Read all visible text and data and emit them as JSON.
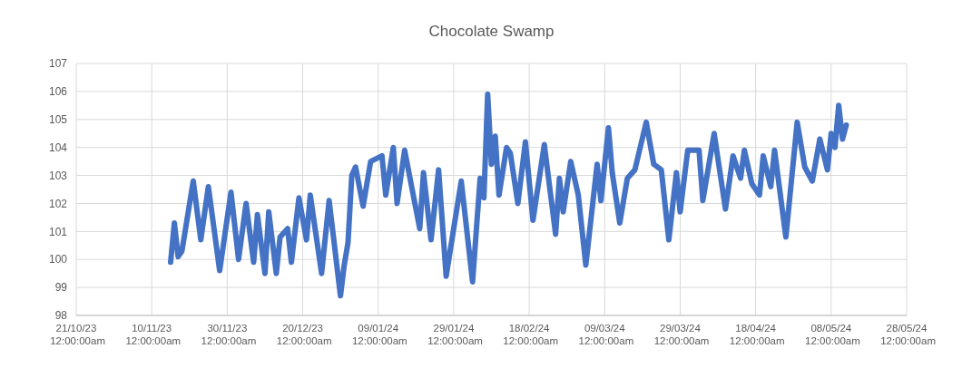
{
  "chart_data": {
    "type": "line",
    "title": "Chocolate Swamp",
    "x": [
      "2023-11-15",
      "2023-11-16",
      "2023-11-17",
      "2023-11-18",
      "2023-11-21",
      "2023-11-23",
      "2023-11-25",
      "2023-11-28",
      "2023-12-01",
      "2023-12-03",
      "2023-12-05",
      "2023-12-07",
      "2023-12-08",
      "2023-12-10",
      "2023-12-11",
      "2023-12-13",
      "2023-12-14",
      "2023-12-16",
      "2023-12-17",
      "2023-12-19",
      "2023-12-21",
      "2023-12-22",
      "2023-12-25",
      "2023-12-27",
      "2023-12-30",
      "2023-12-31",
      "2024-01-01",
      "2024-01-02",
      "2024-01-03",
      "2024-01-05",
      "2024-01-07",
      "2024-01-10",
      "2024-01-11",
      "2024-01-13",
      "2024-01-14",
      "2024-01-16",
      "2024-01-20",
      "2024-01-21",
      "2024-01-23",
      "2024-01-25",
      "2024-01-27",
      "2024-01-31",
      "2024-02-03",
      "2024-02-05",
      "2024-02-06",
      "2024-02-07",
      "2024-02-08",
      "2024-02-09",
      "2024-02-10",
      "2024-02-12",
      "2024-02-13",
      "2024-02-15",
      "2024-02-17",
      "2024-02-19",
      "2024-02-22",
      "2024-02-25",
      "2024-02-26",
      "2024-02-27",
      "2024-02-29",
      "2024-03-02",
      "2024-03-04",
      "2024-03-07",
      "2024-03-08",
      "2024-03-10",
      "2024-03-11",
      "2024-03-13",
      "2024-03-15",
      "2024-03-17",
      "2024-03-20",
      "2024-03-22",
      "2024-03-24",
      "2024-03-26",
      "2024-03-28",
      "2024-03-29",
      "2024-03-31",
      "2024-04-03",
      "2024-04-04",
      "2024-04-07",
      "2024-04-10",
      "2024-04-12",
      "2024-04-14",
      "2024-04-15",
      "2024-04-17",
      "2024-04-19",
      "2024-04-20",
      "2024-04-22",
      "2024-04-23",
      "2024-04-26",
      "2024-04-29",
      "2024-05-01",
      "2024-05-03",
      "2024-05-05",
      "2024-05-07",
      "2024-05-08",
      "2024-05-09",
      "2024-05-10",
      "2024-05-11",
      "2024-05-12"
    ],
    "series": [
      {
        "color": "#4472c4",
        "values": [
          99.9,
          101.3,
          100.1,
          100.3,
          102.8,
          100.7,
          102.6,
          99.6,
          102.4,
          100.0,
          102.0,
          99.9,
          101.6,
          99.5,
          101.7,
          99.5,
          100.8,
          101.1,
          99.9,
          102.2,
          100.7,
          102.3,
          99.5,
          102.1,
          98.7,
          99.8,
          100.6,
          103.0,
          103.3,
          101.9,
          103.5,
          103.7,
          102.3,
          104.0,
          102.0,
          103.9,
          101.1,
          103.1,
          100.7,
          103.2,
          99.4,
          102.8,
          99.2,
          102.9,
          102.2,
          105.9,
          103.4,
          104.4,
          102.3,
          104.0,
          103.8,
          102.0,
          104.2,
          101.4,
          104.1,
          100.9,
          102.9,
          101.7,
          103.5,
          102.3,
          99.8,
          103.4,
          102.1,
          104.7,
          103.1,
          101.3,
          102.9,
          103.2,
          104.9,
          103.4,
          103.2,
          100.7,
          103.1,
          101.7,
          103.9,
          103.9,
          102.1,
          104.5,
          101.8,
          103.7,
          102.9,
          103.9,
          102.7,
          102.3,
          103.7,
          102.6,
          103.9,
          100.8,
          104.9,
          103.3,
          102.8,
          104.3,
          103.2,
          104.5,
          104.0,
          105.5,
          104.3,
          104.8
        ]
      }
    ],
    "xlim": [
      "2023-10-21",
      "2024-05-28"
    ],
    "xticks": [
      {
        "value": "2023-10-21",
        "label": "21/10/23 12:00:00am"
      },
      {
        "value": "2023-11-10",
        "label": "10/11/23 12:00:00am"
      },
      {
        "value": "2023-11-30",
        "label": "30/11/23 12:00:00am"
      },
      {
        "value": "2023-12-20",
        "label": "20/12/23 12:00:00am"
      },
      {
        "value": "2024-01-09",
        "label": "09/01/24 12:00:00am"
      },
      {
        "value": "2024-01-29",
        "label": "29/01/24 12:00:00am"
      },
      {
        "value": "2024-02-18",
        "label": "18/02/24 12:00:00am"
      },
      {
        "value": "2024-03-09",
        "label": "09/03/24 12:00:00am"
      },
      {
        "value": "2024-03-29",
        "label": "29/03/24 12:00:00am"
      },
      {
        "value": "2024-04-18",
        "label": "18/04/24 12:00:00am"
      },
      {
        "value": "2024-05-08",
        "label": "08/05/24 12:00:00am"
      },
      {
        "value": "2024-05-28",
        "label": "28/05/24 12:00:00am"
      }
    ],
    "ylim": [
      98,
      107
    ],
    "yticks": [
      98,
      99,
      100,
      101,
      102,
      103,
      104,
      105,
      106,
      107
    ],
    "grid": true
  }
}
